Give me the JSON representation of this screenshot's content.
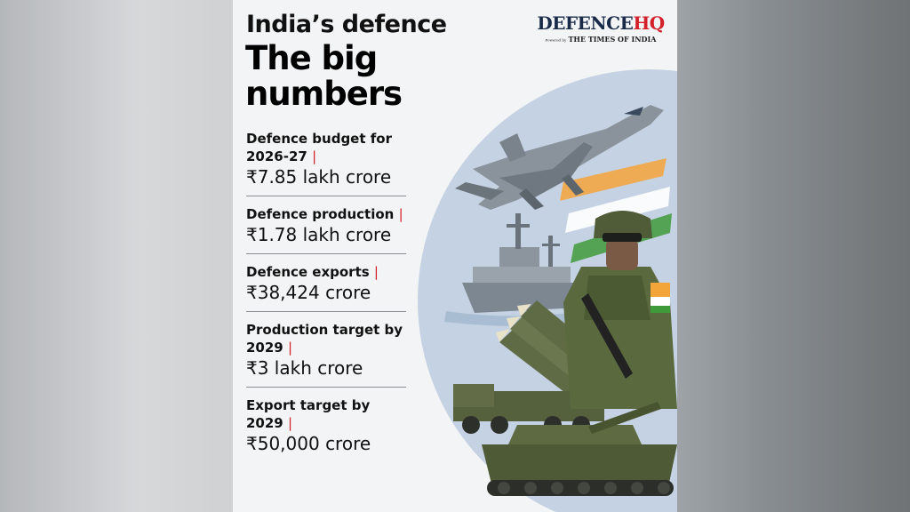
{
  "header": {
    "title_line1": "India’s defence",
    "title_line2": "The big numbers"
  },
  "logo": {
    "main_a": "DEFENCE",
    "main_b": "HQ",
    "powered_by": "Powered by",
    "publisher": "THE TIMES OF INDIA"
  },
  "stats": [
    {
      "label": "Defence budget for 2026-27",
      "value": "₹7.85 lakh crore"
    },
    {
      "label": "Defence production",
      "value": "₹1.78 lakh crore"
    },
    {
      "label": "Defence exports",
      "value": "₹38,424 crore"
    },
    {
      "label": "Production target by 2029",
      "value": "₹3 lakh crore"
    },
    {
      "label": "Export target by 2029",
      "value": "₹50,000 crore"
    }
  ],
  "separator": "|",
  "colors": {
    "accent": "#d3202a",
    "logo_navy": "#1a2b4a",
    "circle": "#c5d2e3",
    "saffron": "#f4a53a",
    "green": "#3f9a3a"
  },
  "illustration": {
    "items": [
      "fighter-jet",
      "warship",
      "soldier",
      "missile-launcher",
      "tank",
      "tricolour-flag"
    ]
  }
}
